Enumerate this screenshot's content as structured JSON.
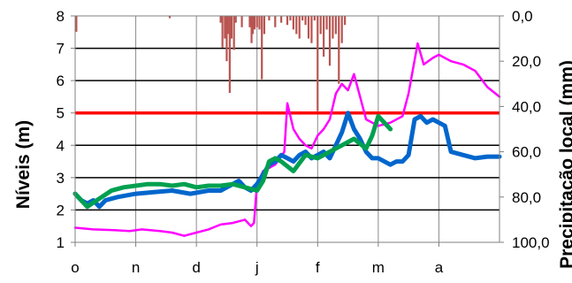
{
  "chart_data": {
    "type": "line",
    "ylabel": "Níveis (m)",
    "y2label": "Precipitação local (mm)",
    "xlabel": "",
    "x_tick_labels": [
      "o",
      "n",
      "d",
      "j",
      "f",
      "m",
      "a"
    ],
    "x_range": [
      0,
      7
    ],
    "ylim": [
      1,
      8
    ],
    "y_ticks": [
      "1",
      "2",
      "3",
      "4",
      "5",
      "6",
      "7",
      "8"
    ],
    "y2lim": [
      0,
      100
    ],
    "y2_inverted": true,
    "y2_ticks": [
      "0,0",
      "20,0",
      "40,0",
      "60,0",
      "80,0",
      "100,0"
    ],
    "grid": true,
    "reference_line": {
      "y": 5,
      "color": "#ff0000"
    },
    "series": [
      {
        "color": "#ff00ff",
        "x": [
          0.0,
          0.3,
          0.6,
          0.9,
          1.1,
          1.4,
          1.6,
          1.8,
          2.0,
          2.2,
          2.4,
          2.6,
          2.8,
          2.9,
          2.95,
          3.0,
          3.1,
          3.2,
          3.3,
          3.45,
          3.5,
          3.6,
          3.7,
          3.8,
          3.9,
          4.0,
          4.1,
          4.2,
          4.3,
          4.4,
          4.5,
          4.6,
          4.7,
          4.8,
          5.0,
          5.2,
          5.4,
          5.5,
          5.65,
          5.75,
          5.9,
          6.0,
          6.2,
          6.4,
          6.6,
          6.8,
          7.0
        ],
        "y": [
          1.45,
          1.4,
          1.38,
          1.35,
          1.4,
          1.35,
          1.3,
          1.2,
          1.3,
          1.4,
          1.55,
          1.6,
          1.7,
          1.5,
          1.6,
          2.8,
          3.2,
          3.3,
          3.4,
          3.8,
          5.3,
          4.5,
          4.2,
          4.0,
          3.9,
          4.3,
          4.5,
          4.8,
          5.6,
          5.9,
          5.7,
          6.2,
          5.5,
          4.8,
          4.6,
          4.7,
          4.9,
          5.6,
          7.15,
          6.5,
          6.7,
          6.8,
          6.6,
          6.5,
          6.3,
          5.8,
          5.5
        ]
      },
      {
        "color": "#0066cc",
        "x": [
          0.0,
          0.1,
          0.2,
          0.3,
          0.4,
          0.5,
          0.7,
          1.0,
          1.3,
          1.6,
          1.9,
          2.2,
          2.4,
          2.6,
          2.7,
          2.8,
          2.9,
          3.0,
          3.1,
          3.2,
          3.3,
          3.4,
          3.5,
          3.6,
          3.7,
          3.8,
          3.9,
          4.0,
          4.1,
          4.2,
          4.3,
          4.4,
          4.5,
          4.6,
          4.7,
          4.8,
          4.9,
          5.0,
          5.2,
          5.3,
          5.4,
          5.5,
          5.6,
          5.7,
          5.8,
          5.9,
          6.0,
          6.1,
          6.2,
          6.4,
          6.6,
          6.8,
          7.0
        ],
        "y": [
          2.5,
          2.3,
          2.2,
          2.3,
          2.1,
          2.3,
          2.4,
          2.5,
          2.55,
          2.6,
          2.5,
          2.6,
          2.6,
          2.8,
          2.9,
          2.7,
          2.6,
          2.8,
          3.1,
          3.4,
          3.5,
          3.7,
          3.6,
          3.5,
          3.7,
          3.8,
          3.6,
          3.7,
          3.8,
          3.6,
          4.0,
          4.4,
          5.0,
          4.5,
          4.2,
          3.8,
          3.6,
          3.6,
          3.4,
          3.5,
          3.5,
          3.7,
          4.8,
          4.9,
          4.7,
          4.8,
          4.7,
          4.6,
          3.8,
          3.7,
          3.6,
          3.65,
          3.65
        ]
      },
      {
        "color": "#00a050",
        "x": [
          0.0,
          0.2,
          0.4,
          0.6,
          0.8,
          1.0,
          1.2,
          1.4,
          1.6,
          1.8,
          2.0,
          2.2,
          2.4,
          2.6,
          2.8,
          3.0,
          3.1,
          3.2,
          3.3,
          3.4,
          3.6,
          3.8,
          4.0,
          4.2,
          4.4,
          4.6,
          4.8,
          4.9,
          5.0,
          5.1,
          5.2
        ],
        "y": [
          2.5,
          2.1,
          2.35,
          2.6,
          2.7,
          2.75,
          2.8,
          2.8,
          2.75,
          2.8,
          2.7,
          2.75,
          2.75,
          2.8,
          2.7,
          2.6,
          2.9,
          3.5,
          3.6,
          3.5,
          3.2,
          3.7,
          3.6,
          3.8,
          4.0,
          4.2,
          3.9,
          4.3,
          4.9,
          4.7,
          4.5
        ]
      }
    ],
    "precipitation_bars": {
      "color": "#b85450",
      "x": [
        0.02,
        1.56,
        2.4,
        2.43,
        2.47,
        2.5,
        2.52,
        2.55,
        2.58,
        2.62,
        2.65,
        2.75,
        2.88,
        2.91,
        2.93,
        2.96,
        3.0,
        3.04,
        3.08,
        3.12,
        3.2,
        3.3,
        3.4,
        3.5,
        3.55,
        3.6,
        3.65,
        3.7,
        3.75,
        3.8,
        3.85,
        3.9,
        3.95,
        4.0,
        4.05,
        4.1,
        4.15,
        4.2,
        4.25,
        4.3,
        4.35,
        4.4,
        4.45
      ],
      "mm": [
        7,
        1,
        3,
        14,
        10,
        20,
        8,
        34,
        10,
        15,
        3,
        5,
        5,
        12,
        8,
        6,
        5,
        6,
        28,
        8,
        2,
        5,
        3,
        4,
        2,
        6,
        8,
        10,
        2,
        4,
        10,
        12,
        2,
        42,
        8,
        18,
        6,
        22,
        10,
        8,
        30,
        12,
        4
      ]
    }
  }
}
